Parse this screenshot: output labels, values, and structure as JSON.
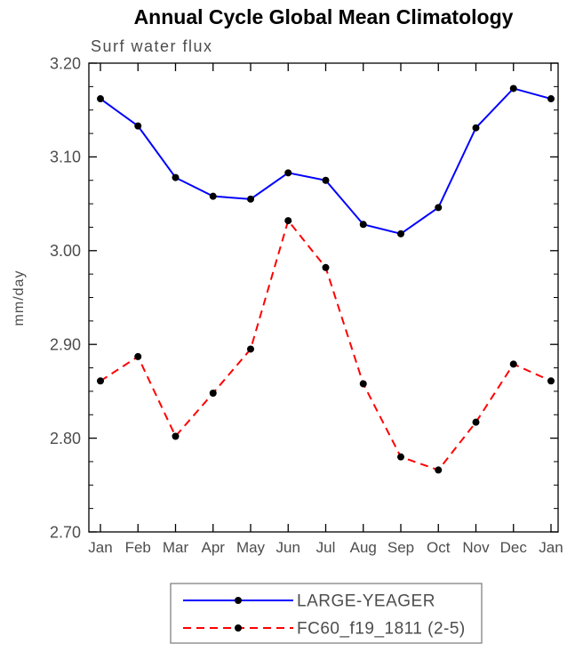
{
  "page": {
    "title": "Annual Cycle Global Mean Climatology"
  },
  "chart_data": {
    "type": "line",
    "title": "Annual Cycle Global Mean Climatology",
    "subtitle": "Surf water flux",
    "xlabel": "",
    "ylabel": "mm/day",
    "categories": [
      "Jan",
      "Feb",
      "Mar",
      "Apr",
      "May",
      "Jun",
      "Jul",
      "Aug",
      "Sep",
      "Oct",
      "Nov",
      "Dec",
      "Jan"
    ],
    "ylim": [
      2.7,
      3.2
    ],
    "y_ticks": [
      2.7,
      2.8,
      2.9,
      3.0,
      3.1,
      3.2
    ],
    "y_tick_decimals": 2,
    "minor_per_major": 3,
    "grid": false,
    "ticks_direction": "inward",
    "legend_position": "bottom",
    "axis_color": "#000000",
    "text_color": "#4d4d4d",
    "marker_color": "#000000",
    "marker_shape": "filled-circle",
    "series": [
      {
        "name": "LARGE-YEAGER",
        "color": "#0000ff",
        "style": "solid",
        "values": [
          3.162,
          3.133,
          3.078,
          3.058,
          3.055,
          3.083,
          3.075,
          3.028,
          3.018,
          3.046,
          3.131,
          3.173,
          3.162
        ]
      },
      {
        "name": "FC60_f19_1811 (2-5)",
        "color": "#ff0000",
        "style": "dashed",
        "values": [
          2.861,
          2.887,
          2.802,
          2.848,
          2.895,
          3.032,
          2.982,
          2.858,
          2.78,
          2.766,
          2.817,
          2.879,
          2.861
        ]
      }
    ]
  }
}
